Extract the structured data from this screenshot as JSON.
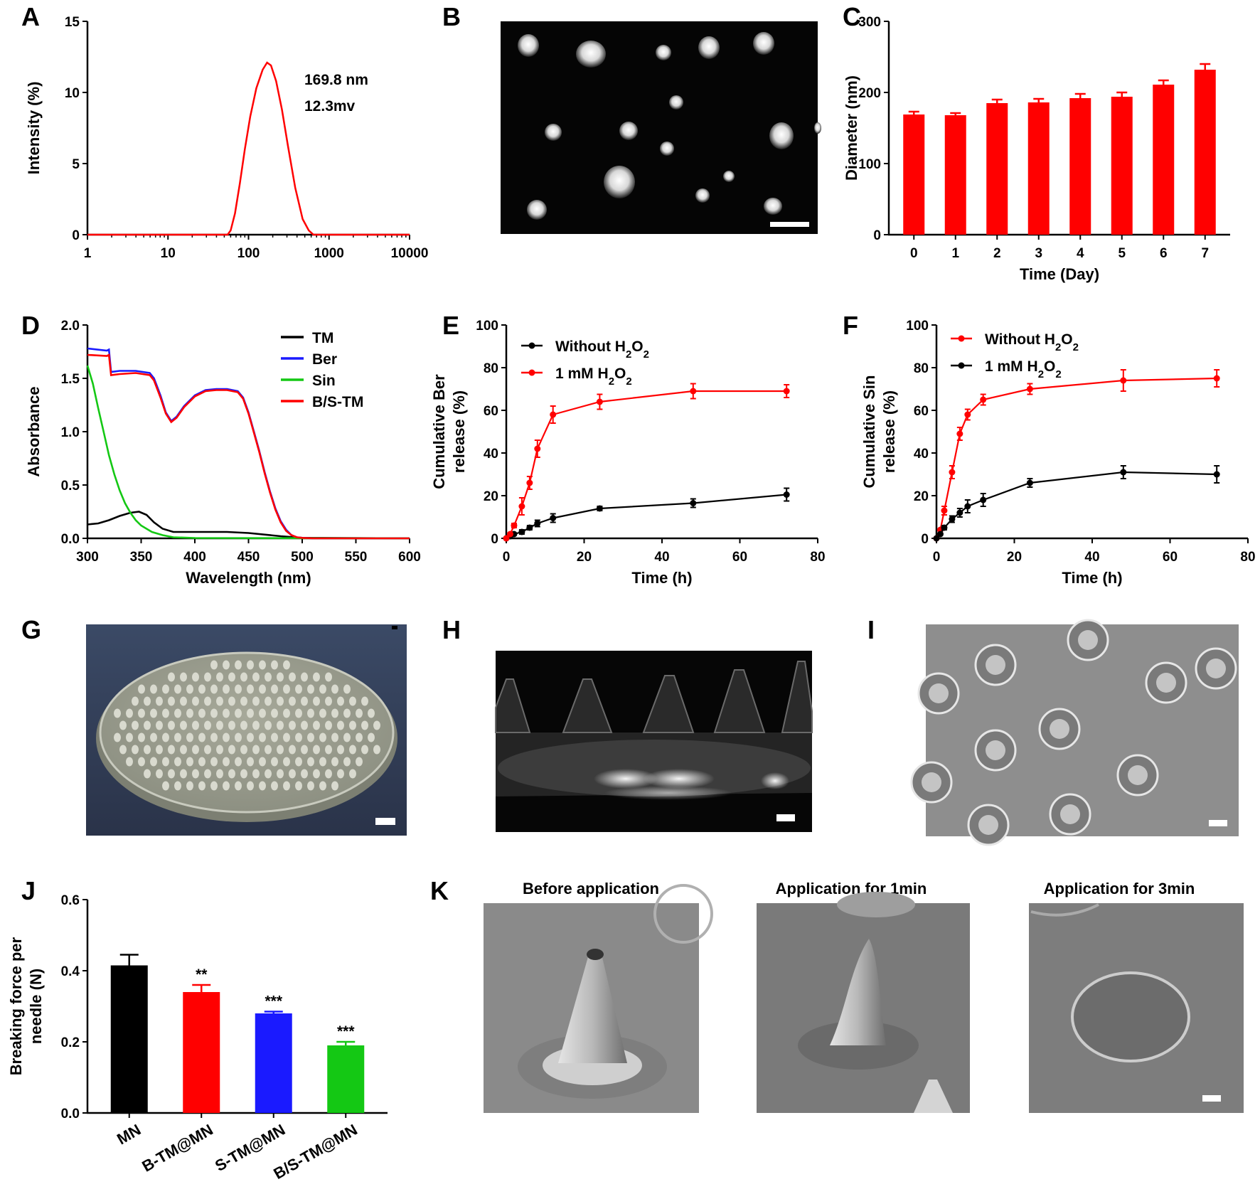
{
  "panels": {
    "A": "A",
    "B": "B",
    "C": "C",
    "D": "D",
    "E": "E",
    "F": "F",
    "G": "G",
    "H": "H",
    "I": "I",
    "J": "J",
    "K": "K"
  },
  "colors": {
    "red": "#ff0000",
    "black": "#000000",
    "blue": "#1a1aff",
    "green": "#14c814"
  },
  "panelA": {
    "annotation_size": "169.8 nm",
    "annotation_zeta": "12.3mv"
  },
  "panelK": {
    "captions": [
      "Before application",
      "Application for 1min",
      "Application for 3min"
    ]
  },
  "chart_data": [
    {
      "panel": "A",
      "type": "line",
      "xscale": "log",
      "xlim": [
        1,
        10000
      ],
      "ylim": [
        0,
        15
      ],
      "xticks": [
        1,
        10,
        100,
        1000,
        10000
      ],
      "xtick_labels": [
        "1",
        "10",
        "100",
        "1000",
        "10000"
      ],
      "yticks": [
        0,
        5,
        10,
        15
      ],
      "xlabel": "",
      "ylabel": "Intensity (%)",
      "series": [
        {
          "color": "#ff0000",
          "x": [
            1,
            55,
            60,
            68,
            78,
            90,
            105,
            125,
            150,
            170,
            190,
            220,
            260,
            310,
            380,
            470,
            560,
            640,
            10000
          ],
          "y": [
            0,
            0,
            0.3,
            1.5,
            3.6,
            6.0,
            8.3,
            10.3,
            11.6,
            12.1,
            11.9,
            10.8,
            8.8,
            6.2,
            3.3,
            1.1,
            0.3,
            0,
            0
          ]
        }
      ]
    },
    {
      "panel": "C",
      "type": "bar",
      "categories": [
        "0",
        "1",
        "2",
        "3",
        "4",
        "5",
        "6",
        "7"
      ],
      "values": [
        169,
        168,
        185,
        186,
        192,
        194,
        211,
        232
      ],
      "errors": [
        4,
        3,
        5,
        5,
        6,
        6,
        6,
        8
      ],
      "ylim": [
        0,
        300
      ],
      "yticks": [
        0,
        100,
        200,
        300
      ],
      "xlabel": "Time (Day)",
      "ylabel": "Diameter (nm)"
    },
    {
      "panel": "D",
      "type": "line",
      "xlim": [
        300,
        600
      ],
      "ylim": [
        0,
        2.0
      ],
      "xticks": [
        300,
        350,
        400,
        450,
        500,
        550,
        600
      ],
      "yticks": [
        0.0,
        0.5,
        1.0,
        1.5,
        2.0
      ],
      "ytick_labels": [
        "0.0",
        "0.5",
        "1.0",
        "1.5",
        "2.0"
      ],
      "xlabel": "Wavelength (nm)",
      "ylabel": "Absorbance",
      "legend_position": "top-right",
      "series": [
        {
          "name": "TM",
          "color": "#000000",
          "x": [
            300,
            310,
            320,
            330,
            340,
            348,
            355,
            362,
            370,
            380,
            400,
            430,
            450,
            480,
            500,
            600
          ],
          "y": [
            0.13,
            0.14,
            0.17,
            0.21,
            0.24,
            0.25,
            0.22,
            0.15,
            0.09,
            0.06,
            0.06,
            0.06,
            0.05,
            0.02,
            0.005,
            0
          ]
        },
        {
          "name": "Ber",
          "color": "#1a1aff",
          "x": [
            300,
            318,
            320,
            322,
            330,
            345,
            358,
            362,
            368,
            373,
            378,
            383,
            390,
            400,
            410,
            420,
            430,
            440,
            445,
            450,
            455,
            460,
            465,
            470,
            475,
            480,
            485,
            490,
            495,
            500,
            510,
            600
          ],
          "y": [
            1.78,
            1.76,
            1.77,
            1.56,
            1.57,
            1.57,
            1.55,
            1.5,
            1.34,
            1.18,
            1.1,
            1.14,
            1.24,
            1.34,
            1.39,
            1.4,
            1.4,
            1.38,
            1.32,
            1.18,
            1.0,
            0.82,
            0.62,
            0.44,
            0.28,
            0.16,
            0.08,
            0.03,
            0.01,
            0.005,
            0,
            0
          ]
        },
        {
          "name": "Sin",
          "color": "#14c814",
          "x": [
            300,
            305,
            310,
            315,
            320,
            325,
            330,
            335,
            340,
            345,
            350,
            360,
            370,
            380,
            400,
            600
          ],
          "y": [
            1.62,
            1.45,
            1.22,
            1.0,
            0.78,
            0.6,
            0.45,
            0.33,
            0.24,
            0.17,
            0.12,
            0.06,
            0.03,
            0.01,
            0.003,
            0
          ]
        },
        {
          "name": "B/S-TM",
          "color": "#ff0000",
          "x": [
            300,
            318,
            320,
            322,
            330,
            345,
            358,
            362,
            368,
            373,
            378,
            383,
            390,
            400,
            410,
            420,
            430,
            440,
            445,
            450,
            455,
            460,
            465,
            470,
            475,
            480,
            485,
            490,
            495,
            500,
            510,
            600
          ],
          "y": [
            1.72,
            1.71,
            1.72,
            1.53,
            1.54,
            1.55,
            1.53,
            1.48,
            1.32,
            1.17,
            1.09,
            1.13,
            1.23,
            1.33,
            1.38,
            1.39,
            1.39,
            1.37,
            1.31,
            1.17,
            0.99,
            0.81,
            0.61,
            0.43,
            0.27,
            0.15,
            0.07,
            0.03,
            0.01,
            0.005,
            0,
            0
          ]
        }
      ]
    },
    {
      "panel": "E",
      "type": "line",
      "xlim": [
        0,
        80
      ],
      "ylim": [
        0,
        100
      ],
      "xticks": [
        0,
        20,
        40,
        60,
        80
      ],
      "yticks": [
        0,
        20,
        40,
        60,
        80,
        100
      ],
      "xlabel": "Time (h)",
      "ylabel": "Cumulative Ber release (%)",
      "legend_position": "top-left",
      "series": [
        {
          "name": "Without H2O2",
          "color": "#000000",
          "x": [
            0,
            1,
            2,
            4,
            6,
            8,
            12,
            24,
            48,
            72
          ],
          "y": [
            0,
            1,
            2,
            3,
            5,
            7,
            9.5,
            14,
            16.5,
            20.5
          ],
          "err": [
            0,
            0.5,
            0.5,
            1,
            1,
            1.5,
            2,
            1,
            2,
            3
          ]
        },
        {
          "name": "1 mM H2O2",
          "color": "#ff0000",
          "x": [
            0,
            1,
            2,
            4,
            6,
            8,
            12,
            24,
            48,
            72
          ],
          "y": [
            0,
            2,
            6,
            15,
            26,
            42,
            58,
            64,
            69,
            69
          ],
          "err": [
            0,
            0.5,
            1,
            4,
            3,
            4,
            4,
            3.5,
            3.5,
            3
          ]
        }
      ]
    },
    {
      "panel": "F",
      "type": "line",
      "xlim": [
        0,
        80
      ],
      "ylim": [
        0,
        100
      ],
      "xticks": [
        0,
        20,
        40,
        60,
        80
      ],
      "yticks": [
        0,
        20,
        40,
        60,
        80,
        100
      ],
      "xlabel": "Time (h)",
      "ylabel": "Cumulative Sin release (%)",
      "legend_position": "top-left",
      "series": [
        {
          "name": "Without H2O2",
          "color": "#ff0000",
          "x": [
            0,
            1,
            2,
            4,
            6,
            8,
            12,
            24,
            48,
            72
          ],
          "y": [
            0,
            4,
            13,
            31,
            49,
            58,
            65,
            70,
            74,
            75
          ],
          "err": [
            0,
            0.5,
            2,
            3,
            3,
            2.5,
            2.5,
            2.5,
            5,
            4
          ]
        },
        {
          "name": "1 mM H2O2",
          "color": "#000000",
          "x": [
            0,
            1,
            2,
            4,
            6,
            8,
            12,
            24,
            48,
            72
          ],
          "y": [
            0,
            2,
            5,
            9,
            12,
            15,
            18,
            26,
            31,
            30
          ],
          "err": [
            0,
            0.5,
            1,
            1.5,
            2,
            3,
            3,
            2,
            3,
            4
          ]
        }
      ]
    },
    {
      "panel": "J",
      "type": "bar",
      "categories": [
        "MN",
        "B-TM@MN",
        "S-TM@MN",
        "B/S-TM@MN"
      ],
      "values": [
        0.415,
        0.34,
        0.28,
        0.19
      ],
      "errors": [
        0.03,
        0.02,
        0.005,
        0.01
      ],
      "colors": [
        "#000000",
        "#ff0000",
        "#1a1aff",
        "#14c814"
      ],
      "significance": [
        "",
        "**",
        "***",
        "***"
      ],
      "ylim": [
        0,
        0.6
      ],
      "yticks": [
        0,
        0.2,
        0.4,
        0.6
      ],
      "ytick_labels": [
        "0.0",
        "0.2",
        "0.4",
        "0.6"
      ],
      "xlabel": "",
      "ylabel": "Breaking force per needle (N)"
    }
  ]
}
